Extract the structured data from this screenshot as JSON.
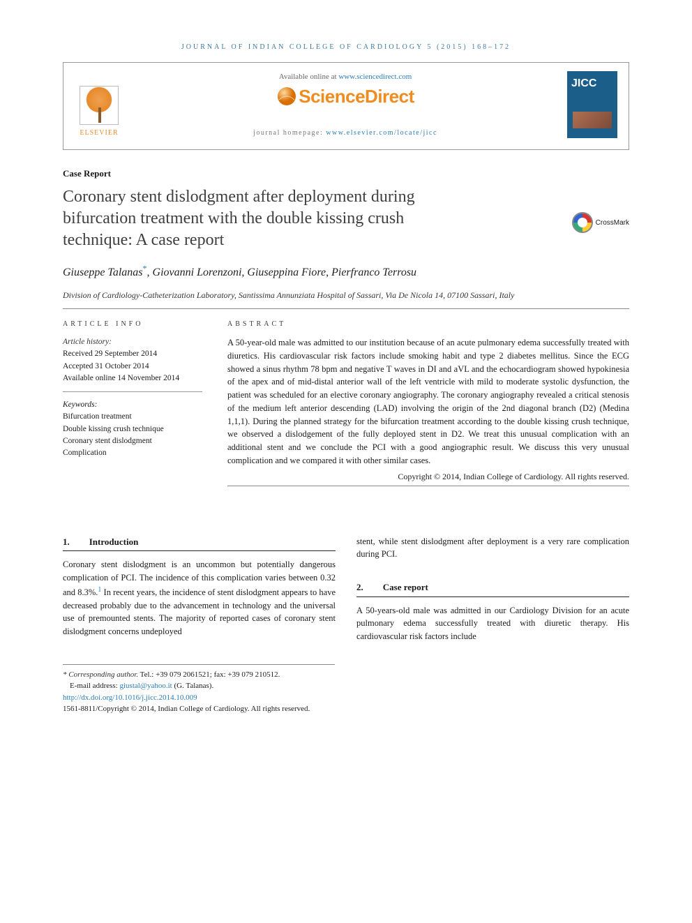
{
  "journal_header": "JOURNAL OF INDIAN COLLEGE OF CARDIOLOGY 5 (2015) 168–172",
  "top": {
    "available_prefix": "Available online at ",
    "available_url": "www.sciencedirect.com",
    "sd_logo_text": "ScienceDirect",
    "homepage_prefix": "journal homepage: ",
    "homepage_url": "www.elsevier.com/locate/jicc",
    "elsevier_label": "ELSEVIER",
    "cover_label": "JICC"
  },
  "crossmark_label": "CrossMark",
  "article_type": "Case Report",
  "title": "Coronary stent dislodgment after deployment during bifurcation treatment with the double kissing crush technique: A case report",
  "authors_line": "Giuseppe Talanas*, Giovanni Lorenzoni, Giuseppina Fiore, Pierfranco Terrosu",
  "affiliation": "Division of Cardiology-Catheterization Laboratory, Santissima Annunziata Hospital of Sassari, Via De Nicola 14, 07100 Sassari, Italy",
  "info": {
    "heading": "ARTICLE INFO",
    "history_label": "Article history:",
    "received": "Received 29 September 2014",
    "accepted": "Accepted 31 October 2014",
    "online": "Available online 14 November 2014",
    "keywords_label": "Keywords:",
    "keywords": [
      "Bifurcation treatment",
      "Double kissing crush technique",
      "Coronary stent dislodgment",
      "Complication"
    ]
  },
  "abstract": {
    "heading": "ABSTRACT",
    "body": "A 50-year-old male was admitted to our institution because of an acute pulmonary edema successfully treated with diuretics. His cardiovascular risk factors include smoking habit and type 2 diabetes mellitus. Since the ECG showed a sinus rhythm 78 bpm and negative T waves in DI and aVL and the echocardiogram showed hypokinesia of the apex and of mid-distal anterior wall of the left ventricle with mild to moderate systolic dysfunction, the patient was scheduled for an elective coronary angiography. The coronary angiography revealed a critical stenosis of the medium left anterior descending (LAD) involving the origin of the 2nd diagonal branch (D2) (Medina 1,1,1). During the planned strategy for the bifurcation treatment according to the double kissing crush technique, we observed a dislodgement of the fully deployed stent in D2. We treat this unusual complication with an additional stent and we conclude the PCI with a good angiographic result. We discuss this very unusual complication and we compared it with other similar cases.",
    "copyright": "Copyright © 2014, Indian College of Cardiology. All rights reserved."
  },
  "sections": {
    "s1": {
      "num": "1.",
      "title": "Introduction",
      "para": "Coronary stent dislodgment is an uncommon but potentially dangerous complication of PCI. The incidence of this complication varies between 0.32 and 8.3%.1 In recent years, the incidence of stent dislodgment appears to have decreased probably due to the advancement in technology and the universal use of premounted stents. The majority of reported cases of coronary stent dislodgment concerns undeployed"
    },
    "s1_cont": "stent, while stent dislodgment after deployment is a very rare complication during PCI.",
    "s2": {
      "num": "2.",
      "title": "Case report",
      "para": "A 50-years-old male was admitted in our Cardiology Division for an acute pulmonary edema successfully treated with diuretic therapy. His cardiovascular risk factors include"
    }
  },
  "footer": {
    "corr_label": "* Corresponding author.",
    "corr_contact": " Tel.: +39 079 2061521; fax: +39 079 210512.",
    "email_label": "E-mail address: ",
    "email": "giustal@yahoo.it",
    "email_paren": " (G. Talanas).",
    "doi": "http://dx.doi.org/10.1016/j.jicc.2014.10.009",
    "issn_line": "1561-8811/Copyright © 2014, Indian College of Cardiology. All rights reserved."
  },
  "colors": {
    "link": "#2b7cb3",
    "sd_orange": "#f08b1d",
    "header_blue": "#3b7a9e"
  }
}
